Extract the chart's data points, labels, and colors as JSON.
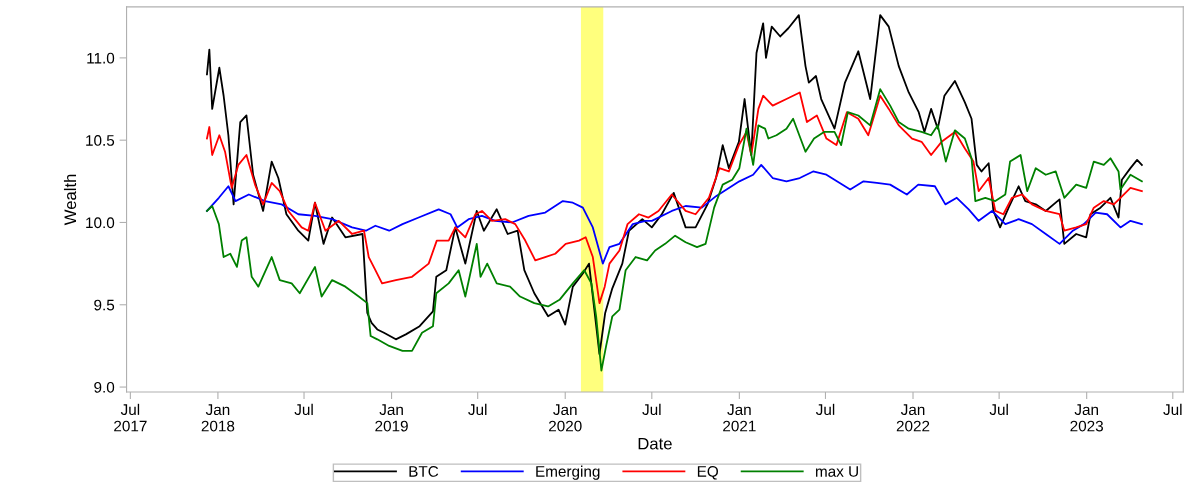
{
  "chart_data": {
    "type": "line",
    "xlabel": "Date",
    "ylabel": "Wealth",
    "xlim": [
      "2017-06-23",
      "2023-07-23"
    ],
    "ylim": [
      8.97,
      11.31
    ],
    "xticks": [
      {
        "value": "2017-07-01",
        "label": "Jul\n2017"
      },
      {
        "value": "2018-01-01",
        "label": "Jan\n2018"
      },
      {
        "value": "2018-07-01",
        "label": "Jul"
      },
      {
        "value": "2019-01-01",
        "label": "Jan\n2019"
      },
      {
        "value": "2019-07-01",
        "label": "Jul"
      },
      {
        "value": "2020-01-01",
        "label": "Jan\n2020"
      },
      {
        "value": "2020-07-01",
        "label": "Jul"
      },
      {
        "value": "2021-01-01",
        "label": "Jan\n2021"
      },
      {
        "value": "2021-07-01",
        "label": "Jul"
      },
      {
        "value": "2022-01-01",
        "label": "Jan\n2022"
      },
      {
        "value": "2022-07-01",
        "label": "Jul"
      },
      {
        "value": "2023-01-01",
        "label": "Jan\n2023"
      },
      {
        "value": "2023-07-01",
        "label": "Jul"
      }
    ],
    "yticks": [
      {
        "value": 9,
        "label": "9.0"
      },
      {
        "value": 9.5,
        "label": "9.5"
      },
      {
        "value": 10,
        "label": "10.0"
      },
      {
        "value": 10.5,
        "label": "10.5"
      },
      {
        "value": 11,
        "label": "11.0"
      }
    ],
    "grid": false,
    "legend": "bottom",
    "marker": "none",
    "line_style": "solid",
    "bands": [
      {
        "axis": "x",
        "from": "2020-02-03",
        "to": "2020-03-21",
        "color": "#ffff66"
      }
    ],
    "series": [
      {
        "name": "BTC",
        "color": "#000000",
        "x": [
          "2017-12-09",
          "2017-12-14",
          "2017-12-20",
          "2018-01-04",
          "2018-01-13",
          "2018-01-23",
          "2018-02-03",
          "2018-02-17",
          "2018-03-02",
          "2018-03-16",
          "2018-04-06",
          "2018-04-24",
          "2018-05-08",
          "2018-05-25",
          "2018-06-19",
          "2018-07-10",
          "2018-07-24",
          "2018-08-11",
          "2018-08-29",
          "2018-09-26",
          "2018-11-01",
          "2018-11-11",
          "2018-11-20",
          "2018-12-02",
          "2018-12-16",
          "2019-01-10",
          "2019-01-31",
          "2019-03-01",
          "2019-03-29",
          "2019-04-05",
          "2019-04-26",
          "2019-05-15",
          "2019-06-05",
          "2019-06-29",
          "2019-07-14",
          "2019-08-10",
          "2019-09-02",
          "2019-09-23",
          "2019-10-07",
          "2019-10-28",
          "2019-11-26",
          "2019-12-18",
          "2020-01-01",
          "2020-01-17",
          "2020-02-07",
          "2020-02-20",
          "2020-03-13",
          "2020-03-25",
          "2020-04-09",
          "2020-04-30",
          "2020-05-14",
          "2020-06-11",
          "2020-07-01",
          "2020-07-22",
          "2020-08-16",
          "2020-09-10",
          "2020-10-01",
          "2020-10-26",
          "2020-11-13",
          "2020-11-27",
          "2020-12-10",
          "2020-12-31",
          "2021-01-12",
          "2021-01-26",
          "2021-02-06",
          "2021-02-20",
          "2021-02-26",
          "2021-03-10",
          "2021-03-28",
          "2021-04-14",
          "2021-05-06",
          "2021-05-20",
          "2021-05-27",
          "2021-06-11",
          "2021-06-22",
          "2021-07-20",
          "2021-08-11",
          "2021-09-08",
          "2021-10-03",
          "2021-10-24",
          "2021-11-11",
          "2021-12-02",
          "2021-12-23",
          "2022-01-13",
          "2022-01-25",
          "2022-02-08",
          "2022-02-22",
          "2022-03-08",
          "2022-03-30",
          "2022-04-20",
          "2022-05-04",
          "2022-05-15",
          "2022-05-25",
          "2022-06-09",
          "2022-06-19",
          "2022-07-03",
          "2022-07-21",
          "2022-08-11",
          "2022-08-25",
          "2022-09-16",
          "2022-10-07",
          "2022-11-05",
          "2022-11-15",
          "2022-12-10",
          "2022-12-31",
          "2023-01-09",
          "2023-01-30",
          "2023-02-20",
          "2023-03-09",
          "2023-03-16",
          "2023-04-03",
          "2023-04-17",
          "2023-04-27"
        ],
        "values": [
          10.9,
          11.05,
          10.69,
          10.94,
          10.77,
          10.53,
          10.11,
          10.61,
          10.65,
          10.29,
          10.07,
          10.37,
          10.27,
          10.05,
          9.95,
          9.89,
          10.12,
          9.87,
          10.03,
          9.91,
          9.93,
          9.45,
          9.39,
          9.35,
          9.33,
          9.29,
          9.32,
          9.37,
          9.46,
          9.67,
          9.71,
          9.97,
          9.75,
          10.07,
          9.95,
          10.08,
          9.93,
          9.95,
          9.71,
          9.57,
          9.43,
          9.47,
          9.38,
          9.61,
          9.69,
          9.75,
          9.2,
          9.45,
          9.6,
          9.75,
          9.95,
          10.02,
          9.97,
          10.05,
          10.18,
          9.97,
          9.97,
          10.11,
          10.27,
          10.47,
          10.33,
          10.49,
          10.75,
          10.41,
          11.03,
          11.21,
          11.0,
          11.19,
          11.13,
          11.18,
          11.26,
          10.95,
          10.85,
          10.89,
          10.75,
          10.57,
          10.85,
          11.04,
          10.75,
          11.26,
          11.19,
          10.95,
          10.79,
          10.67,
          10.55,
          10.69,
          10.57,
          10.77,
          10.86,
          10.73,
          10.63,
          10.35,
          10.31,
          10.36,
          10.07,
          9.97,
          10.09,
          10.22,
          10.13,
          10.11,
          10.07,
          10.14,
          9.87,
          9.93,
          9.91,
          10.05,
          10.09,
          10.15,
          10.03,
          10.26,
          10.33,
          10.38,
          10.35
        ]
      },
      {
        "name": "Emerging",
        "color": "#0000ff",
        "x": [
          "2017-12-09",
          "2018-01-03",
          "2018-01-23",
          "2018-02-07",
          "2018-03-07",
          "2018-04-10",
          "2018-05-15",
          "2018-06-19",
          "2018-07-24",
          "2018-08-29",
          "2018-10-10",
          "2018-11-08",
          "2018-11-28",
          "2018-12-27",
          "2019-01-24",
          "2019-02-27",
          "2019-04-10",
          "2019-05-05",
          "2019-05-19",
          "2019-06-12",
          "2019-07-10",
          "2019-08-07",
          "2019-09-11",
          "2019-10-16",
          "2019-11-20",
          "2019-12-27",
          "2020-01-17",
          "2020-02-07",
          "2020-02-28",
          "2020-03-20",
          "2020-04-03",
          "2020-04-24",
          "2020-05-22",
          "2020-06-18",
          "2020-07-01",
          "2020-08-12",
          "2020-09-10",
          "2020-10-14",
          "2020-11-13",
          "2020-12-10",
          "2021-01-01",
          "2021-01-30",
          "2021-02-16",
          "2021-03-12",
          "2021-04-10",
          "2021-05-08",
          "2021-06-05",
          "2021-07-03",
          "2021-07-31",
          "2021-08-22",
          "2021-09-19",
          "2021-10-17",
          "2021-11-14",
          "2021-12-19",
          "2022-01-12",
          "2022-02-16",
          "2022-03-10",
          "2022-04-03",
          "2022-04-28",
          "2022-05-19",
          "2022-06-16",
          "2022-07-14",
          "2022-08-11",
          "2022-09-08",
          "2022-10-07",
          "2022-11-05",
          "2022-12-03",
          "2022-12-26",
          "2023-01-20",
          "2023-02-13",
          "2023-03-13",
          "2023-04-03",
          "2023-04-27"
        ],
        "values": [
          10.07,
          10.15,
          10.22,
          10.13,
          10.17,
          10.13,
          10.11,
          10.05,
          10.04,
          10.02,
          9.97,
          9.95,
          9.98,
          9.95,
          9.99,
          10.03,
          10.08,
          10.05,
          9.97,
          10.02,
          10.04,
          10.01,
          10.0,
          10.04,
          10.06,
          10.13,
          10.12,
          10.09,
          9.97,
          9.75,
          9.85,
          9.87,
          9.99,
          10.01,
          10.01,
          10.07,
          10.1,
          10.09,
          10.16,
          10.21,
          10.25,
          10.29,
          10.35,
          10.27,
          10.25,
          10.27,
          10.31,
          10.29,
          10.24,
          10.2,
          10.25,
          10.24,
          10.23,
          10.17,
          10.23,
          10.22,
          10.11,
          10.15,
          10.08,
          10.01,
          10.07,
          9.99,
          10.02,
          9.99,
          9.93,
          9.87,
          9.95,
          9.99,
          10.06,
          10.05,
          9.97,
          10.01,
          9.99
        ]
      },
      {
        "name": "EQ",
        "color": "#ff0000",
        "x": [
          "2017-12-09",
          "2017-12-14",
          "2017-12-20",
          "2018-01-04",
          "2018-01-16",
          "2018-01-30",
          "2018-02-13",
          "2018-03-02",
          "2018-03-20",
          "2018-04-06",
          "2018-04-24",
          "2018-05-11",
          "2018-05-29",
          "2018-06-26",
          "2018-07-10",
          "2018-07-24",
          "2018-08-15",
          "2018-09-12",
          "2018-10-10",
          "2018-11-04",
          "2018-11-14",
          "2018-11-28",
          "2018-12-12",
          "2019-01-10",
          "2019-02-13",
          "2019-03-20",
          "2019-04-06",
          "2019-05-01",
          "2019-05-15",
          "2019-06-05",
          "2019-06-26",
          "2019-07-10",
          "2019-07-31",
          "2019-08-28",
          "2019-09-18",
          "2019-10-09",
          "2019-10-30",
          "2019-11-20",
          "2019-12-11",
          "2020-01-02",
          "2020-01-30",
          "2020-02-13",
          "2020-02-28",
          "2020-03-13",
          "2020-03-24",
          "2020-04-03",
          "2020-04-24",
          "2020-05-11",
          "2020-06-04",
          "2020-06-24",
          "2020-07-15",
          "2020-08-12",
          "2020-09-10",
          "2020-10-01",
          "2020-10-29",
          "2020-11-20",
          "2020-12-10",
          "2020-12-31",
          "2021-01-16",
          "2021-01-26",
          "2021-02-10",
          "2021-02-20",
          "2021-03-12",
          "2021-04-10",
          "2021-05-08",
          "2021-05-23",
          "2021-06-13",
          "2021-07-03",
          "2021-07-24",
          "2021-08-15",
          "2021-09-08",
          "2021-09-29",
          "2021-10-24",
          "2021-11-11",
          "2021-12-02",
          "2021-12-30",
          "2022-01-19",
          "2022-02-08",
          "2022-03-02",
          "2022-03-30",
          "2022-04-20",
          "2022-05-08",
          "2022-05-19",
          "2022-06-09",
          "2022-06-23",
          "2022-07-10",
          "2022-07-28",
          "2022-08-18",
          "2022-09-08",
          "2022-10-07",
          "2022-11-05",
          "2022-11-15",
          "2022-12-10",
          "2022-12-31",
          "2023-01-16",
          "2023-02-06",
          "2023-02-27",
          "2023-03-13",
          "2023-04-03",
          "2023-04-27"
        ],
        "values": [
          10.51,
          10.58,
          10.41,
          10.53,
          10.43,
          10.21,
          10.35,
          10.41,
          10.23,
          10.11,
          10.24,
          10.19,
          10.07,
          9.97,
          9.95,
          10.12,
          9.95,
          10.01,
          9.93,
          9.95,
          9.79,
          9.71,
          9.63,
          9.65,
          9.67,
          9.75,
          9.89,
          9.89,
          9.97,
          9.91,
          10.05,
          10.07,
          10.01,
          10.02,
          9.99,
          9.89,
          9.77,
          9.79,
          9.81,
          9.87,
          9.89,
          9.91,
          9.79,
          9.51,
          9.61,
          9.75,
          9.83,
          9.99,
          10.05,
          10.03,
          10.07,
          10.17,
          10.07,
          10.05,
          10.15,
          10.33,
          10.31,
          10.47,
          10.55,
          10.41,
          10.69,
          10.77,
          10.71,
          10.75,
          10.79,
          10.61,
          10.65,
          10.51,
          10.47,
          10.67,
          10.63,
          10.53,
          10.77,
          10.69,
          10.59,
          10.51,
          10.49,
          10.41,
          10.49,
          10.55,
          10.45,
          10.37,
          10.19,
          10.27,
          10.07,
          10.05,
          10.15,
          10.17,
          10.11,
          10.07,
          10.05,
          9.95,
          9.97,
          9.99,
          10.09,
          10.13,
          10.11,
          10.15,
          10.21,
          10.19
        ]
      },
      {
        "name": "max U",
        "color": "#008000",
        "x": [
          "2017-12-09",
          "2017-12-20",
          "2018-01-03",
          "2018-01-13",
          "2018-01-27",
          "2018-02-10",
          "2018-02-20",
          "2018-03-02",
          "2018-03-13",
          "2018-03-27",
          "2018-04-24",
          "2018-05-11",
          "2018-06-05",
          "2018-06-22",
          "2018-07-24",
          "2018-08-07",
          "2018-08-29",
          "2018-09-26",
          "2018-10-24",
          "2018-11-11",
          "2018-11-18",
          "2018-12-02",
          "2018-12-27",
          "2019-01-24",
          "2019-02-13",
          "2019-03-06",
          "2019-03-29",
          "2019-04-05",
          "2019-05-01",
          "2019-05-22",
          "2019-06-05",
          "2019-06-29",
          "2019-07-07",
          "2019-07-21",
          "2019-08-10",
          "2019-09-07",
          "2019-09-28",
          "2019-10-28",
          "2019-11-26",
          "2019-12-20",
          "2020-01-17",
          "2020-02-10",
          "2020-02-25",
          "2020-03-06",
          "2020-03-17",
          "2020-03-27",
          "2020-04-09",
          "2020-04-24",
          "2020-05-07",
          "2020-05-28",
          "2020-06-21",
          "2020-07-08",
          "2020-07-29",
          "2020-08-19",
          "2020-09-10",
          "2020-10-04",
          "2020-10-22",
          "2020-11-09",
          "2020-11-27",
          "2020-12-17",
          "2021-01-01",
          "2021-01-16",
          "2021-01-30",
          "2021-02-10",
          "2021-02-24",
          "2021-03-03",
          "2021-03-20",
          "2021-04-10",
          "2021-04-24",
          "2021-05-20",
          "2021-06-07",
          "2021-06-28",
          "2021-07-20",
          "2021-08-03",
          "2021-08-17",
          "2021-09-08",
          "2021-10-03",
          "2021-10-24",
          "2021-11-14",
          "2021-12-02",
          "2021-12-23",
          "2022-01-19",
          "2022-02-08",
          "2022-02-22",
          "2022-03-11",
          "2022-03-30",
          "2022-04-20",
          "2022-05-04",
          "2022-05-12",
          "2022-06-02",
          "2022-06-23",
          "2022-07-14",
          "2022-07-24",
          "2022-08-15",
          "2022-08-29",
          "2022-09-16",
          "2022-10-07",
          "2022-10-28",
          "2022-11-15",
          "2022-12-10",
          "2022-12-31",
          "2023-01-16",
          "2023-02-06",
          "2023-02-20",
          "2023-03-09",
          "2023-03-13",
          "2023-04-03",
          "2023-04-27"
        ],
        "values": [
          10.07,
          10.1,
          9.99,
          9.79,
          9.81,
          9.73,
          9.89,
          9.91,
          9.67,
          9.61,
          9.79,
          9.65,
          9.63,
          9.57,
          9.73,
          9.55,
          9.65,
          9.61,
          9.55,
          9.51,
          9.31,
          9.29,
          9.25,
          9.22,
          9.22,
          9.33,
          9.37,
          9.57,
          9.63,
          9.71,
          9.55,
          9.87,
          9.67,
          9.75,
          9.63,
          9.61,
          9.55,
          9.51,
          9.49,
          9.53,
          9.63,
          9.71,
          9.63,
          9.43,
          9.1,
          9.25,
          9.43,
          9.47,
          9.71,
          9.79,
          9.77,
          9.83,
          9.87,
          9.92,
          9.88,
          9.85,
          9.87,
          10.09,
          10.23,
          10.26,
          10.33,
          10.57,
          10.35,
          10.59,
          10.57,
          10.51,
          10.53,
          10.57,
          10.63,
          10.43,
          10.51,
          10.55,
          10.55,
          10.47,
          10.67,
          10.65,
          10.59,
          10.81,
          10.71,
          10.61,
          10.57,
          10.55,
          10.53,
          10.59,
          10.37,
          10.56,
          10.51,
          10.39,
          10.13,
          10.15,
          10.13,
          10.17,
          10.37,
          10.41,
          10.19,
          10.33,
          10.29,
          10.31,
          10.15,
          10.23,
          10.21,
          10.37,
          10.35,
          10.39,
          10.31,
          10.2,
          10.29,
          10.25
        ]
      }
    ]
  }
}
